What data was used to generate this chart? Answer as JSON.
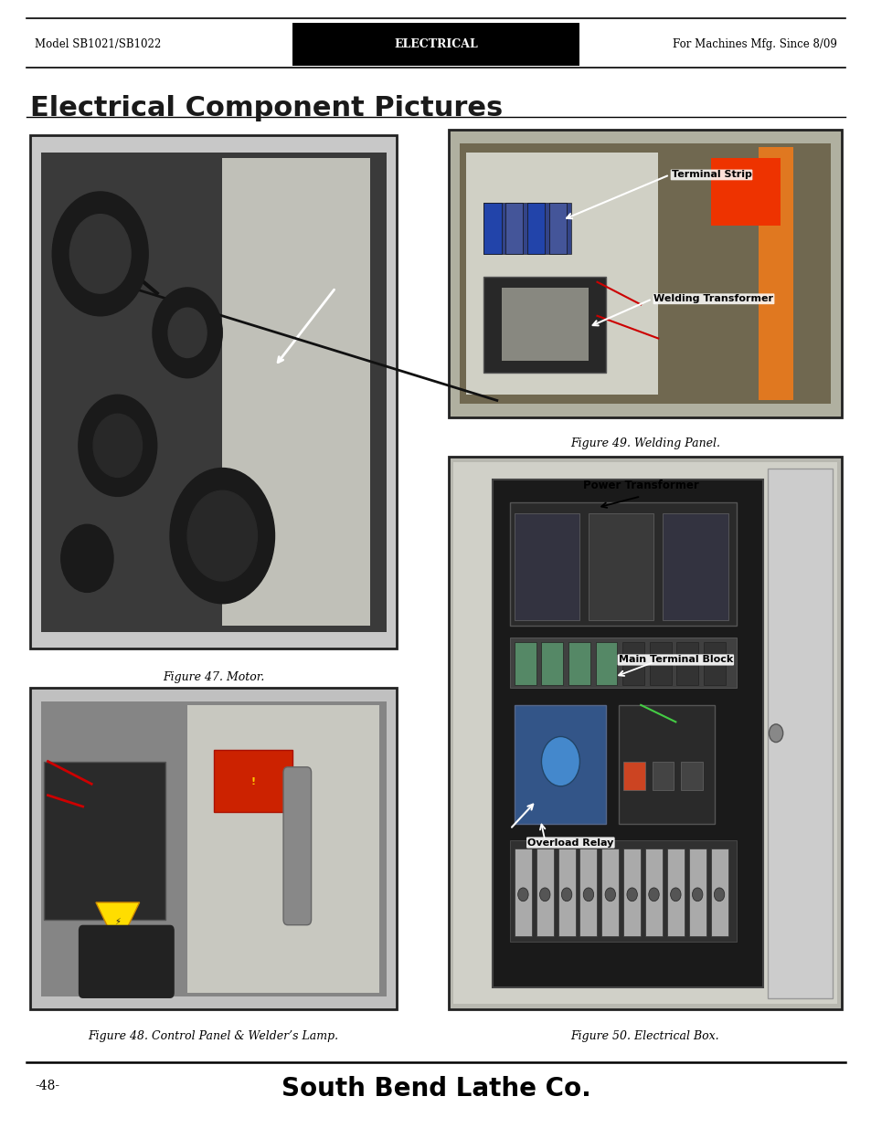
{
  "page_bg": "#ffffff",
  "header": {
    "left_text": "Model SB1021/SB1022",
    "center_text": "ELECTRICAL",
    "right_text": "For Machines Mfg. Since 8/09"
  },
  "title": "Electrical Component Pictures",
  "footer": {
    "page_num": "-48-",
    "company": "South Bend Lathe Co."
  },
  "fig47_caption": "Figure 47. Motor.",
  "fig48_caption": "Figure 48. Control Panel & Welder’s Lamp.",
  "fig49_caption": "Figure 49. Welding Panel.",
  "fig50_caption": "Figure 50. Electrical Box.",
  "ann49_1": "Terminal Strip",
  "ann49_2": "Welding Transformer",
  "ann50_1": "Power Transformer",
  "ann50_2": "Main Terminal Block",
  "ann50_3": "Overload Relay"
}
